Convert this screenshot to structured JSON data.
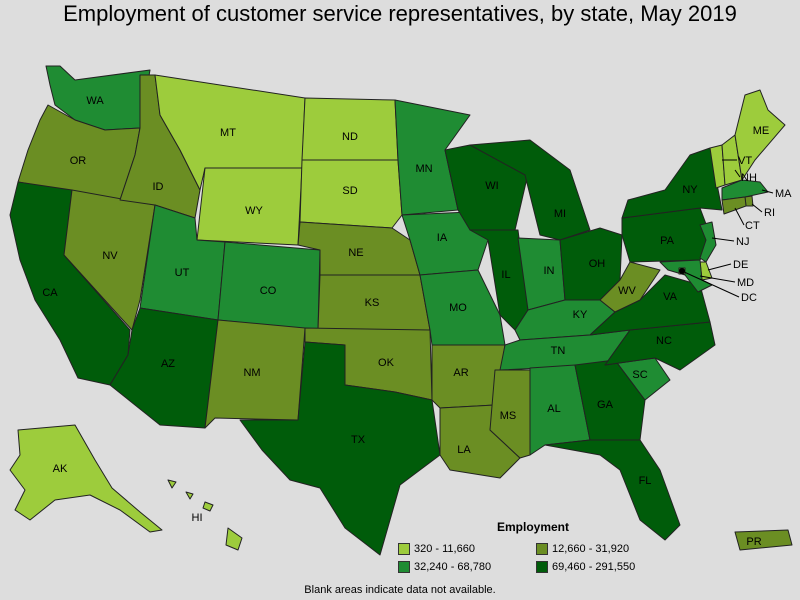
{
  "title": "Employment of customer service representatives, by state, May 2019",
  "legend": {
    "title": "Employment",
    "items": [
      {
        "label": "320 - 11,660",
        "color": "#9dcc3c"
      },
      {
        "label": "12,660 - 31,920",
        "color": "#6b8e23"
      },
      {
        "label": "32,240 - 68,780",
        "color": "#1f8c33"
      },
      {
        "label": "69,460 - 291,550",
        "color": "#005c0a"
      }
    ]
  },
  "footnote": "Blank areas indicate data not available.",
  "states": [
    {
      "abbr": "WA",
      "tier": 2
    },
    {
      "abbr": "OR",
      "tier": 1
    },
    {
      "abbr": "CA",
      "tier": 3
    },
    {
      "abbr": "NV",
      "tier": 1
    },
    {
      "abbr": "ID",
      "tier": 1
    },
    {
      "abbr": "MT",
      "tier": 0
    },
    {
      "abbr": "WY",
      "tier": 0
    },
    {
      "abbr": "UT",
      "tier": 2
    },
    {
      "abbr": "AZ",
      "tier": 3
    },
    {
      "abbr": "CO",
      "tier": 2
    },
    {
      "abbr": "NM",
      "tier": 1
    },
    {
      "abbr": "ND",
      "tier": 0
    },
    {
      "abbr": "SD",
      "tier": 0
    },
    {
      "abbr": "NE",
      "tier": 1
    },
    {
      "abbr": "KS",
      "tier": 1
    },
    {
      "abbr": "OK",
      "tier": 1
    },
    {
      "abbr": "TX",
      "tier": 3
    },
    {
      "abbr": "MN",
      "tier": 2
    },
    {
      "abbr": "IA",
      "tier": 2
    },
    {
      "abbr": "MO",
      "tier": 2
    },
    {
      "abbr": "AR",
      "tier": 1
    },
    {
      "abbr": "LA",
      "tier": 1
    },
    {
      "abbr": "WI",
      "tier": 3
    },
    {
      "abbr": "IL",
      "tier": 3
    },
    {
      "abbr": "MI",
      "tier": 3
    },
    {
      "abbr": "IN",
      "tier": 2
    },
    {
      "abbr": "OH",
      "tier": 3
    },
    {
      "abbr": "KY",
      "tier": 2
    },
    {
      "abbr": "TN",
      "tier": 2
    },
    {
      "abbr": "MS",
      "tier": 1
    },
    {
      "abbr": "AL",
      "tier": 2
    },
    {
      "abbr": "GA",
      "tier": 3
    },
    {
      "abbr": "FL",
      "tier": 3
    },
    {
      "abbr": "SC",
      "tier": 2
    },
    {
      "abbr": "NC",
      "tier": 3
    },
    {
      "abbr": "VA",
      "tier": 3
    },
    {
      "abbr": "WV",
      "tier": 1
    },
    {
      "abbr": "PA",
      "tier": 3
    },
    {
      "abbr": "NY",
      "tier": 3
    },
    {
      "abbr": "VT",
      "tier": 0
    },
    {
      "abbr": "NH",
      "tier": 0
    },
    {
      "abbr": "ME",
      "tier": 0
    },
    {
      "abbr": "MA",
      "tier": 2
    },
    {
      "abbr": "RI",
      "tier": 1
    },
    {
      "abbr": "CT",
      "tier": 1
    },
    {
      "abbr": "NJ",
      "tier": 2
    },
    {
      "abbr": "DE",
      "tier": 0
    },
    {
      "abbr": "MD",
      "tier": 2
    },
    {
      "abbr": "DC",
      "tier": 0
    },
    {
      "abbr": "AK",
      "tier": 0
    },
    {
      "abbr": "HI",
      "tier": 0
    },
    {
      "abbr": "PR",
      "tier": 1
    }
  ]
}
